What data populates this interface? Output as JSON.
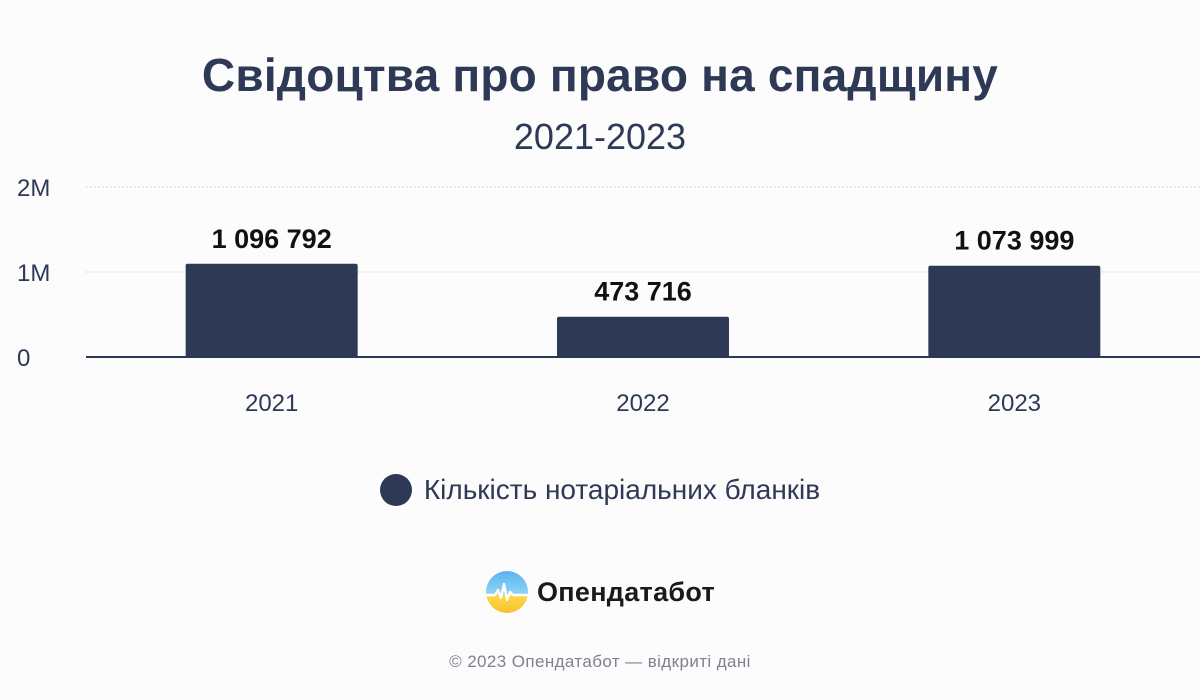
{
  "header": {
    "title": "Свідоцтва про право на спадщину",
    "subtitle": "2021-2023"
  },
  "chart_data": {
    "type": "bar",
    "title": "Свідоцтва про право на спадщину",
    "subtitle": "2021-2023",
    "categories": [
      "2021",
      "2022",
      "2023"
    ],
    "series": [
      {
        "name": "Кількість нотаріальних бланків",
        "values": [
          1096792,
          473716,
          1073999
        ],
        "labels": [
          "1 096 792",
          "473 716",
          "1 073 999"
        ],
        "color": "#2e3956"
      }
    ],
    "ylim": [
      0,
      2000000
    ],
    "yticks": [
      {
        "value": 0,
        "label": "0"
      },
      {
        "value": 1000000,
        "label": "1M"
      },
      {
        "value": 2000000,
        "label": "2M"
      }
    ],
    "grid": true,
    "legend": "bottom-center"
  },
  "legend": {
    "label": "Кількість нотаріальних бланків",
    "color": "#2e3956"
  },
  "branding": {
    "logo_text": "Опендатабот",
    "logo_icon": "opendatabot-logo-icon"
  },
  "footer": {
    "text": "© 2023 Опендатабот — відкриті дані"
  },
  "colors": {
    "bar": "#2e3956",
    "axis": "#2e3956",
    "grid": "#c9ccd3",
    "background": "#fcfcfd"
  }
}
